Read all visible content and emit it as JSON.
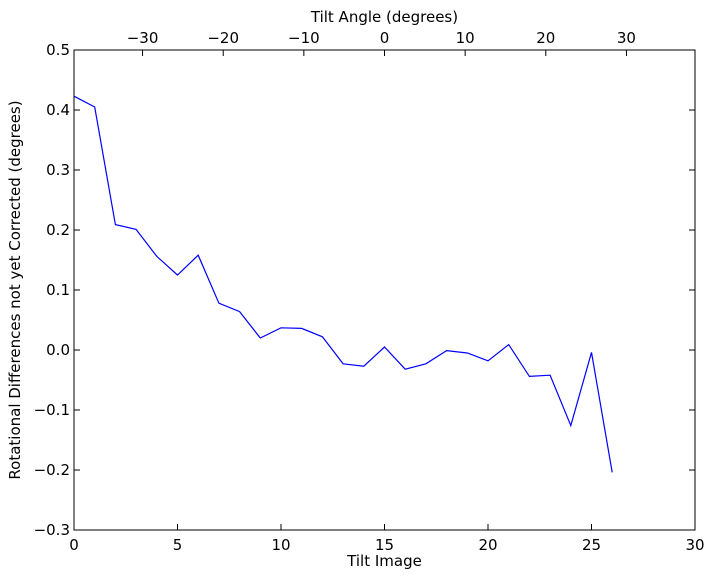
{
  "chart_data": {
    "type": "line",
    "xlabel": "Tilt Image",
    "ylabel": "Rotational Differences not yet Corrected (degrees)",
    "top_xlabel": "Tilt Angle (degrees)",
    "xlim": [
      0,
      30
    ],
    "ylim": [
      -0.3,
      0.5
    ],
    "top_xlim": [
      -38.5,
      38.5
    ],
    "x_ticks": [
      0,
      5,
      10,
      15,
      20,
      25,
      30
    ],
    "x_tick_labels": [
      "0",
      "5",
      "10",
      "15",
      "20",
      "25",
      "30"
    ],
    "y_ticks": [
      -0.3,
      -0.2,
      -0.1,
      0.0,
      0.1,
      0.2,
      0.3,
      0.4,
      0.5
    ],
    "y_tick_labels": [
      "−0.3",
      "−0.2",
      "−0.1",
      "0.0",
      "0.1",
      "0.2",
      "0.3",
      "0.4",
      "0.5"
    ],
    "top_x_ticks": [
      -30,
      -20,
      -10,
      0,
      10,
      20,
      30
    ],
    "top_x_tick_labels": [
      "−30",
      "−20",
      "−10",
      "0",
      "10",
      "20",
      "30"
    ],
    "grid": false,
    "line_color": "#0000ff",
    "series": [
      {
        "x": [
          0,
          1,
          2,
          3,
          4,
          5,
          6,
          7,
          8,
          9,
          10,
          11,
          12,
          13,
          14,
          15,
          16,
          17,
          18,
          19,
          20,
          21,
          22,
          23,
          24,
          25,
          26
        ],
        "values": [
          0.423,
          0.405,
          0.209,
          0.201,
          0.156,
          0.125,
          0.158,
          0.078,
          0.064,
          0.02,
          0.037,
          0.036,
          0.022,
          -0.023,
          -0.027,
          0.005,
          -0.032,
          -0.023,
          -0.001,
          -0.005,
          -0.018,
          0.009,
          -0.044,
          -0.042,
          -0.126,
          -0.004,
          -0.204
        ]
      }
    ]
  }
}
